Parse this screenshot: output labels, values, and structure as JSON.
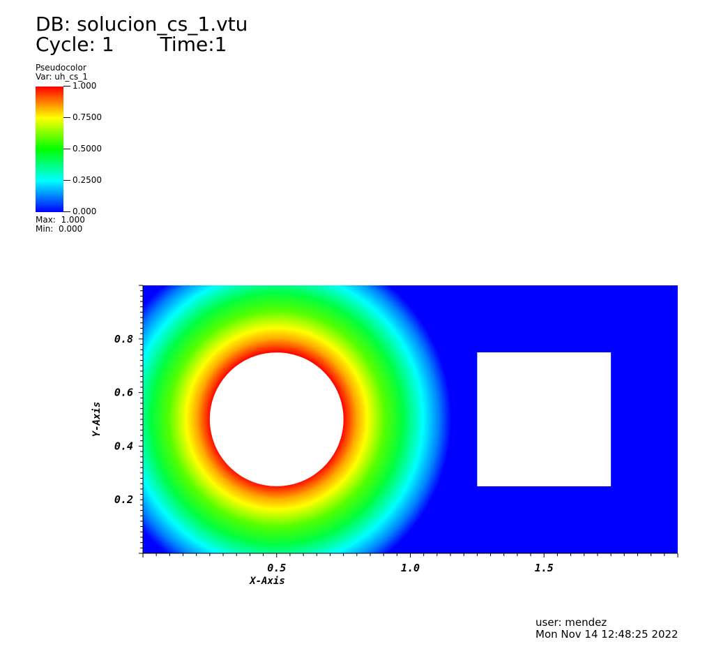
{
  "header": {
    "db": "DB: solucion_cs_1.vtu",
    "cycle": "Cycle: 1",
    "time": "Time:1"
  },
  "legend": {
    "plot_type": "Pseudocolor",
    "var": "Var: uh_cs_1",
    "ticks": [
      "1.000",
      "0.7500",
      "0.5000",
      "0.2500",
      "0.000"
    ],
    "max": "Max:  1.000",
    "min": "Min:  0.000",
    "colors": [
      "#ff0000",
      "#ffff00",
      "#00ff00",
      "#00ffff",
      "#0000ff"
    ]
  },
  "chart_data": {
    "type": "heatmap",
    "title": "",
    "xlabel": "X-Axis",
    "ylabel": "Y-Axis",
    "xlim": [
      0,
      2
    ],
    "ylim": [
      0,
      1
    ],
    "x_ticks": [
      "0.5",
      "1.0",
      "1.5"
    ],
    "x_tick_values": [
      0.5,
      1.0,
      1.5
    ],
    "y_ticks": [
      "0.2",
      "0.4",
      "0.6",
      "0.8"
    ],
    "y_tick_values": [
      0.2,
      0.4,
      0.6,
      0.8
    ],
    "field": "uh_cs_1",
    "range": [
      0,
      1
    ],
    "holes": [
      {
        "shape": "circle",
        "cx": 0.5,
        "cy": 0.5,
        "r": 0.25,
        "boundary_value": 1.0
      },
      {
        "shape": "rect",
        "x0": 1.25,
        "x1": 1.75,
        "y0": 0.25,
        "y1": 0.75
      }
    ]
  },
  "footer": {
    "user": "user: mendez",
    "date": "Mon Nov 14 12:48:25 2022"
  }
}
